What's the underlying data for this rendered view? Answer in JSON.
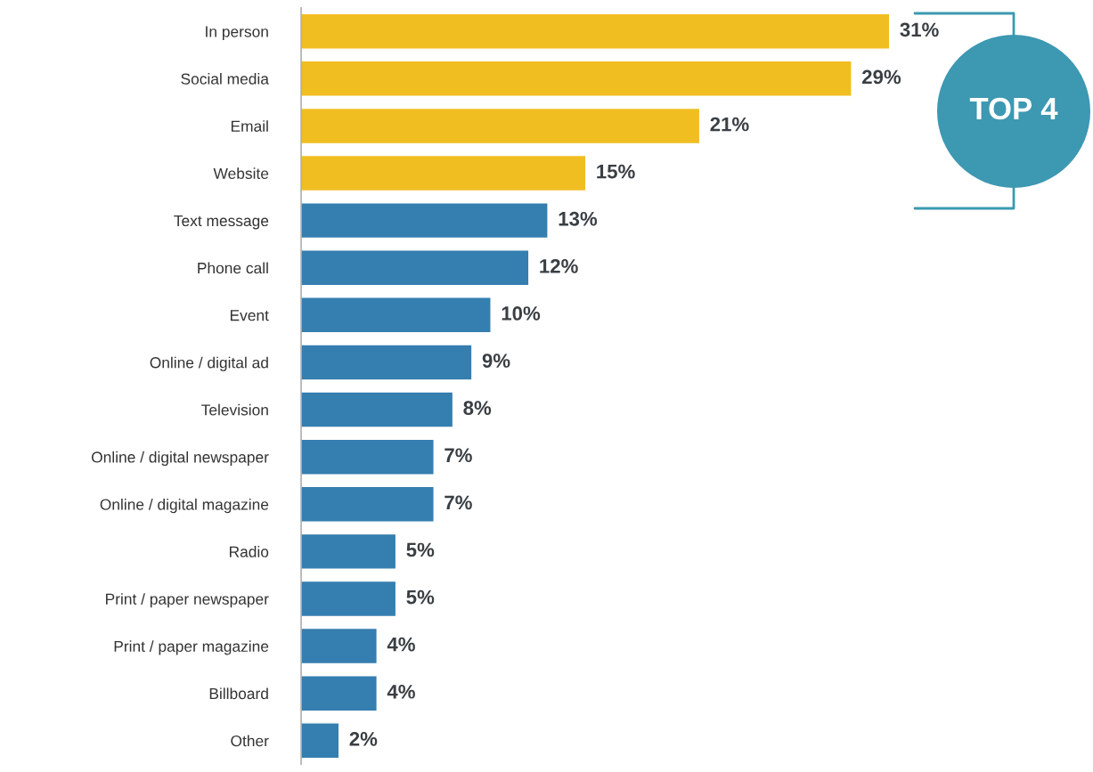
{
  "chart_data": {
    "type": "bar",
    "orientation": "horizontal",
    "tick_labels": "y",
    "grid": false,
    "legend": false,
    "categories": [
      "In person",
      "Social media",
      "Email",
      "Website",
      "Text message",
      "Phone call",
      "Event",
      "Online / digital ad",
      "Television",
      "Online / digital newspaper",
      "Online / digital magazine",
      "Radio",
      "Print / paper newspaper",
      "Print / paper magazine",
      "Billboard",
      "Other"
    ],
    "values": [
      31,
      29,
      21,
      15,
      13,
      12,
      10,
      9,
      8,
      7,
      7,
      5,
      5,
      4,
      4,
      2
    ],
    "value_labels": [
      "31%",
      "29%",
      "21%",
      "15%",
      "13%",
      "12%",
      "10%",
      "9%",
      "8%",
      "7%",
      "7%",
      "5%",
      "5%",
      "4%",
      "4%",
      "2%"
    ],
    "colors": [
      "#f1be22",
      "#f1be22",
      "#f1be22",
      "#f1be22",
      "#357eb0",
      "#357eb0",
      "#357eb0",
      "#357eb0",
      "#357eb0",
      "#357eb0",
      "#357eb0",
      "#357eb0",
      "#357eb0",
      "#357eb0",
      "#357eb0",
      "#357eb0"
    ],
    "annotations": [
      "TOP 4"
    ]
  }
}
